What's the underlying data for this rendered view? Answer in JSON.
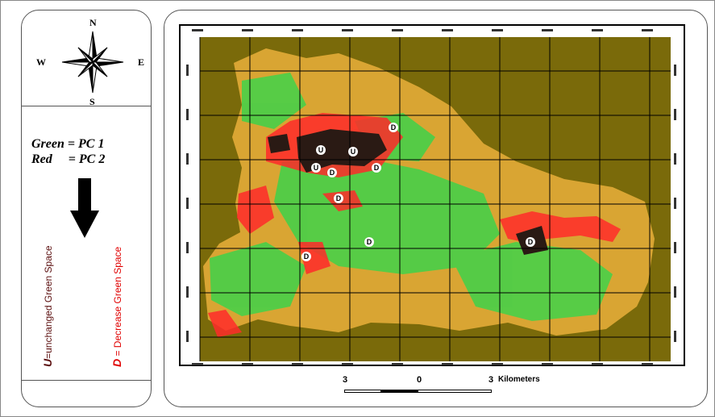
{
  "compass": {
    "north": "N",
    "south": "S",
    "east": "E",
    "west": "W"
  },
  "legend": {
    "green_key": "Green",
    "green_value": "= PC 1",
    "red_key": "Red",
    "red_value": "= PC 2"
  },
  "labels": {
    "unchanged_key": "U",
    "unchanged_text": "=unchanged Green Space",
    "decrease_key": "D",
    "decrease_text": "= Decrease Green Space"
  },
  "map": {
    "unchanged_marker": "U",
    "decrease_marker": "D",
    "colors": {
      "background": "#7a6a0a",
      "land": "#d9a533",
      "green": "#3fd24a",
      "red": "#ff2a2a",
      "dark": "#2a1a14"
    }
  },
  "scale": {
    "left_label": "3",
    "center_label": "0",
    "right_label": "3",
    "unit": "Kilometers"
  }
}
